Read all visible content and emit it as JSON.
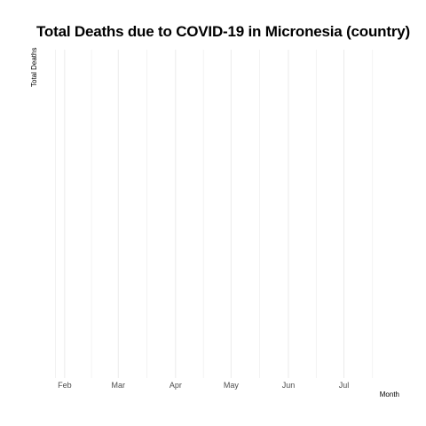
{
  "chart_data": {
    "type": "line",
    "title": "Total Deaths due to COVID-19 in Micronesia (country)",
    "xlabel": "Month",
    "ylabel": "Total Deaths",
    "x_ticks": [
      "Feb",
      "Mar",
      "Apr",
      "May",
      "Jun",
      "Jul"
    ],
    "x_range": [
      "2020-01-22",
      "2020-07-31"
    ],
    "series": [],
    "grid": true,
    "grid_color": "#ebebeb"
  }
}
